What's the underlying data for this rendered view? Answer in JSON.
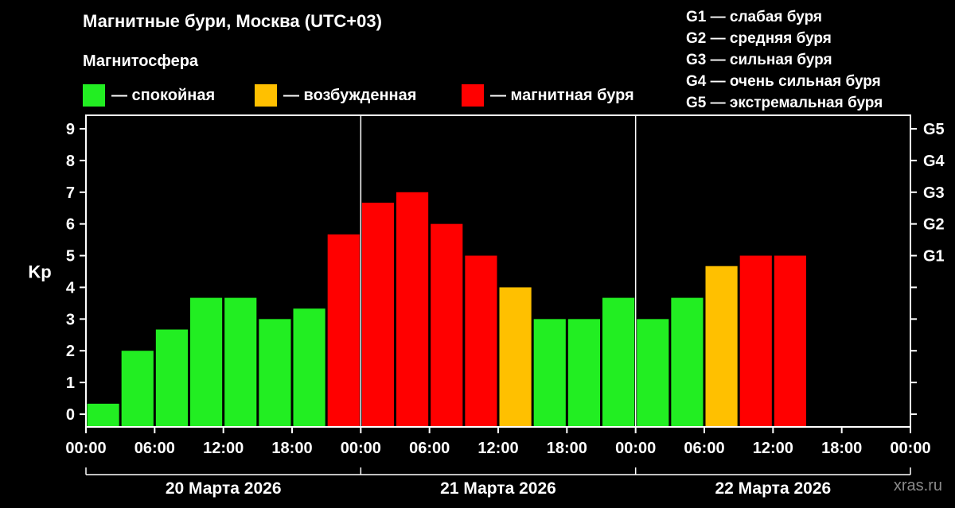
{
  "header": {
    "title": "Магнитные бури, Москва (UTC+03)",
    "subtitle": "Магнитосфера"
  },
  "legend": [
    {
      "label": "— спокойная",
      "color": "#22ee22"
    },
    {
      "label": "— возбужденная",
      "color": "#ffc000"
    },
    {
      "label": "— магнитная буря",
      "color": "#ff0000"
    }
  ],
  "g_legend": [
    "G1 — слабая буря",
    "G2 — средняя буря",
    "G3 — сильная буря",
    "G4 — очень сильная буря",
    "G5 — экстремальная буря"
  ],
  "watermark": "xras.ru",
  "chart_data": {
    "type": "bar",
    "ylabel": "Kp",
    "ylim": [
      0,
      9
    ],
    "y_ticks": [
      "0",
      "1",
      "2",
      "3",
      "4",
      "5",
      "6",
      "7",
      "8",
      "9"
    ],
    "right_axis_ticks": [
      {
        "value": 5,
        "label": "G1"
      },
      {
        "value": 6,
        "label": "G2"
      },
      {
        "value": 7,
        "label": "G3"
      },
      {
        "value": 8,
        "label": "G4"
      },
      {
        "value": 9,
        "label": "G5"
      }
    ],
    "x_tick_labels": [
      "00:00",
      "06:00",
      "12:00",
      "18:00",
      "00:00",
      "06:00",
      "12:00",
      "18:00",
      "00:00",
      "06:00",
      "12:00",
      "18:00",
      "00:00"
    ],
    "days": [
      "20 Марта 2026",
      "21 Марта 2026",
      "22 Марта 2026"
    ],
    "colors": {
      "quiet": "#22ee22",
      "active": "#ffc000",
      "storm": "#ff0000"
    },
    "values": [
      0.33,
      2.0,
      2.67,
      3.67,
      3.67,
      3.0,
      3.33,
      5.67,
      6.67,
      7.0,
      6.0,
      5.0,
      4.0,
      3.0,
      3.0,
      3.67,
      3.0,
      3.67,
      4.67,
      5.0,
      5.0
    ],
    "levels": [
      "quiet",
      "quiet",
      "quiet",
      "quiet",
      "quiet",
      "quiet",
      "quiet",
      "storm",
      "storm",
      "storm",
      "storm",
      "storm",
      "active",
      "quiet",
      "quiet",
      "quiet",
      "quiet",
      "quiet",
      "active",
      "storm",
      "storm"
    ],
    "grid": false
  }
}
